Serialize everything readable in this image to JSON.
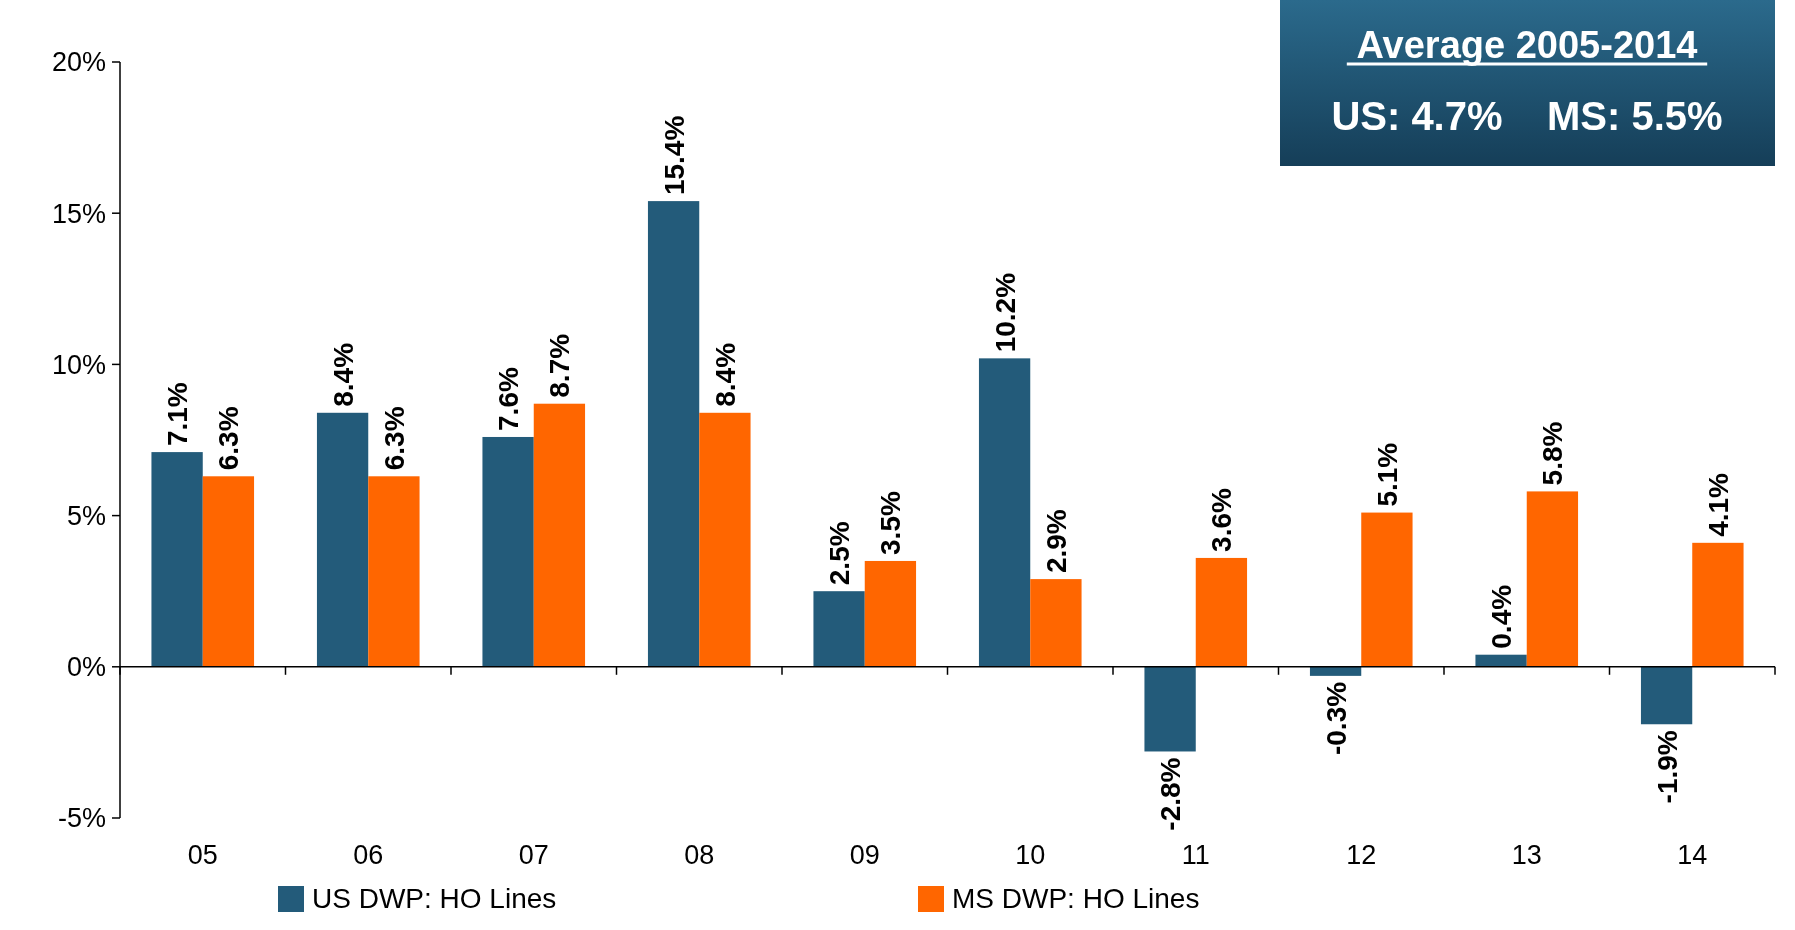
{
  "chart_data": {
    "type": "bar",
    "categories": [
      "05",
      "06",
      "07",
      "08",
      "09",
      "10",
      "11",
      "12",
      "13",
      "14"
    ],
    "series": [
      {
        "name": "US DWP: HO Lines",
        "color": "#235b7a",
        "values": [
          7.1,
          8.4,
          7.6,
          15.4,
          2.5,
          10.2,
          -2.8,
          -0.3,
          0.4,
          -1.9
        ],
        "value_labels": [
          "7.1%",
          "8.4%",
          "7.6%",
          "15.4%",
          "2.5%",
          "10.2%",
          "-2.8%",
          "-0.3%",
          "0.4%",
          "-1.9%"
        ]
      },
      {
        "name": "MS DWP: HO Lines",
        "color": "#ff6600",
        "values": [
          6.3,
          6.3,
          8.7,
          8.4,
          3.5,
          2.9,
          3.6,
          5.1,
          5.8,
          4.1
        ],
        "value_labels": [
          "6.3%",
          "6.3%",
          "8.7%",
          "8.4%",
          "3.5%",
          "2.9%",
          "3.6%",
          "5.1%",
          "5.8%",
          "4.1%"
        ]
      }
    ],
    "ylim": [
      -5,
      20
    ],
    "yticks": [
      {
        "value": -5,
        "label": "-5%"
      },
      {
        "value": 0,
        "label": "0%"
      },
      {
        "value": 5,
        "label": "5%"
      },
      {
        "value": 10,
        "label": "10%"
      },
      {
        "value": 15,
        "label": "15%"
      },
      {
        "value": 20,
        "label": "20%"
      }
    ],
    "legend": "bottom",
    "annotations": [
      "Average 2005-2014",
      "US: 4.7%    MS: 5.5%"
    ]
  }
}
